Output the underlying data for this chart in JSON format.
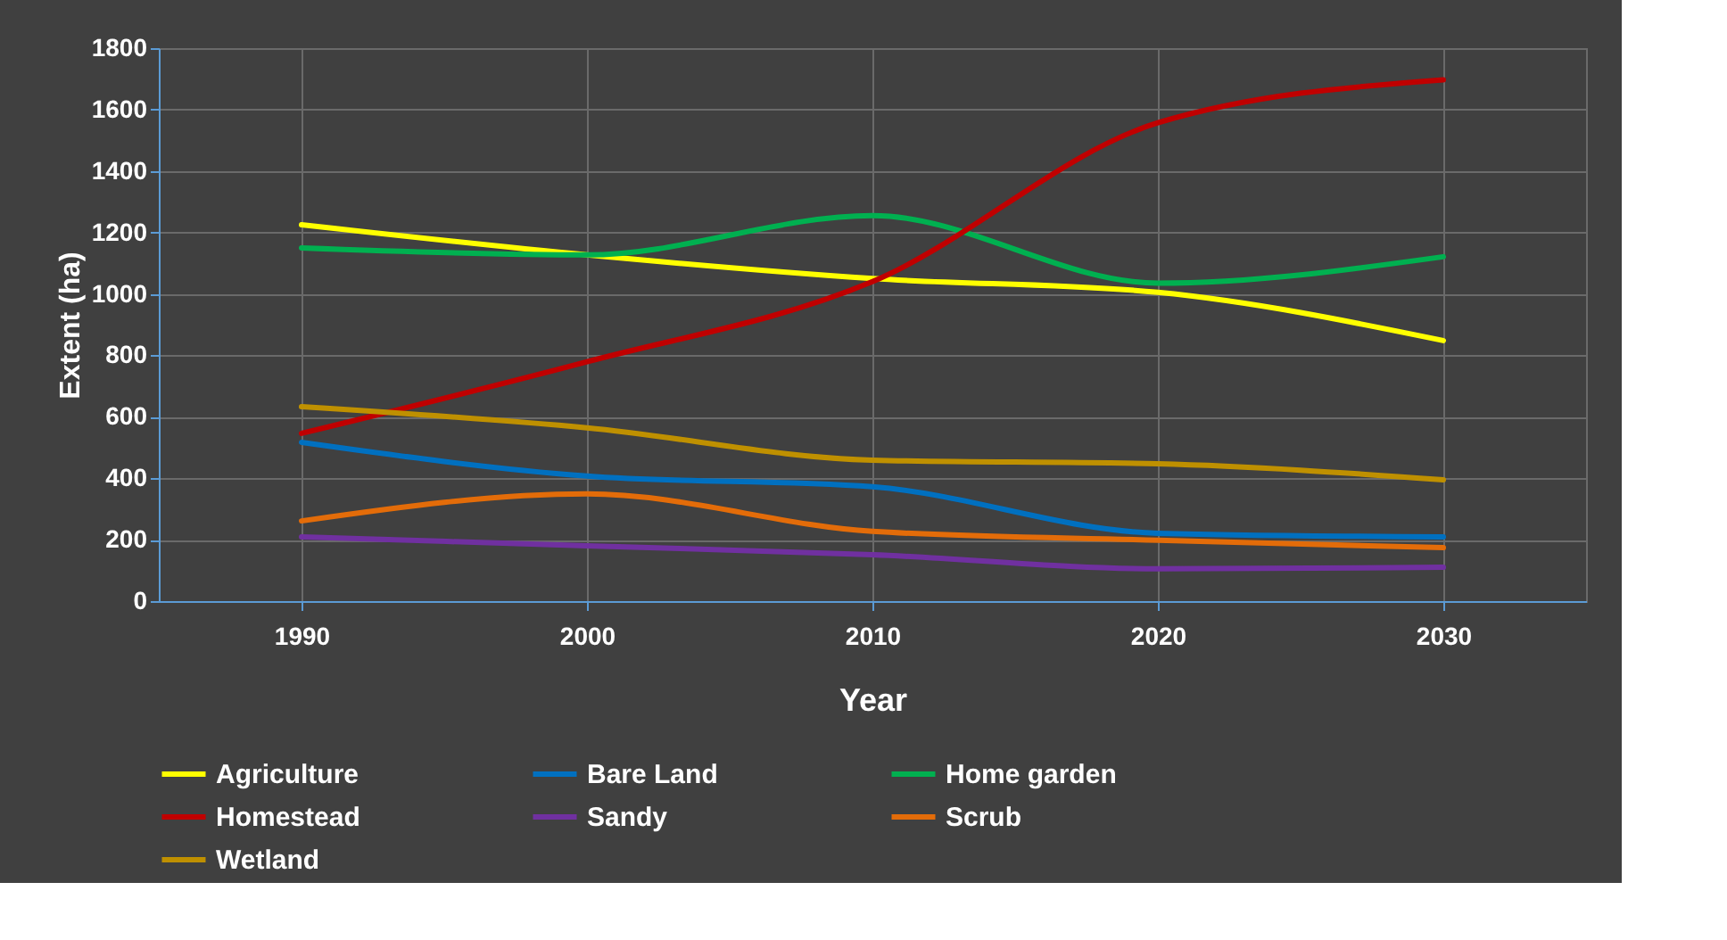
{
  "chart_data": {
    "type": "line",
    "xlabel": "Year",
    "ylabel": "Extent (ha)",
    "x": [
      1990,
      2000,
      2010,
      2020,
      2030
    ],
    "xlim": [
      1985,
      2035
    ],
    "xticks": [
      1990,
      2000,
      2010,
      2020,
      2030
    ],
    "ylim": [
      0,
      1800
    ],
    "yticks": [
      0,
      200,
      400,
      600,
      800,
      1000,
      1200,
      1400,
      1600,
      1800
    ],
    "grid": true,
    "legend": "bottom",
    "marker": "none",
    "line_style": "solid",
    "series": [
      {
        "name": "Agriculture",
        "color": "#ffff00",
        "values": [
          1225,
          1127,
          1050,
          1005,
          848
        ]
      },
      {
        "name": "Bare Land",
        "color": "#0070c0",
        "values": [
          517,
          407,
          372,
          221,
          209
        ]
      },
      {
        "name": "Home garden",
        "color": "#00b050",
        "values": [
          1150,
          1127,
          1255,
          1035,
          1121
        ]
      },
      {
        "name": "Homestead",
        "color": "#c00000",
        "values": [
          546,
          779,
          1040,
          1557,
          1697
        ]
      },
      {
        "name": "Sandy",
        "color": "#7030a0",
        "values": [
          209,
          180,
          151,
          105,
          110
        ]
      },
      {
        "name": "Scrub",
        "color": "#e36c09",
        "values": [
          261,
          349,
          227,
          198,
          174
        ]
      },
      {
        "name": "Wetland",
        "color": "#bf9000",
        "values": [
          633,
          564,
          459,
          447,
          395
        ]
      }
    ]
  }
}
